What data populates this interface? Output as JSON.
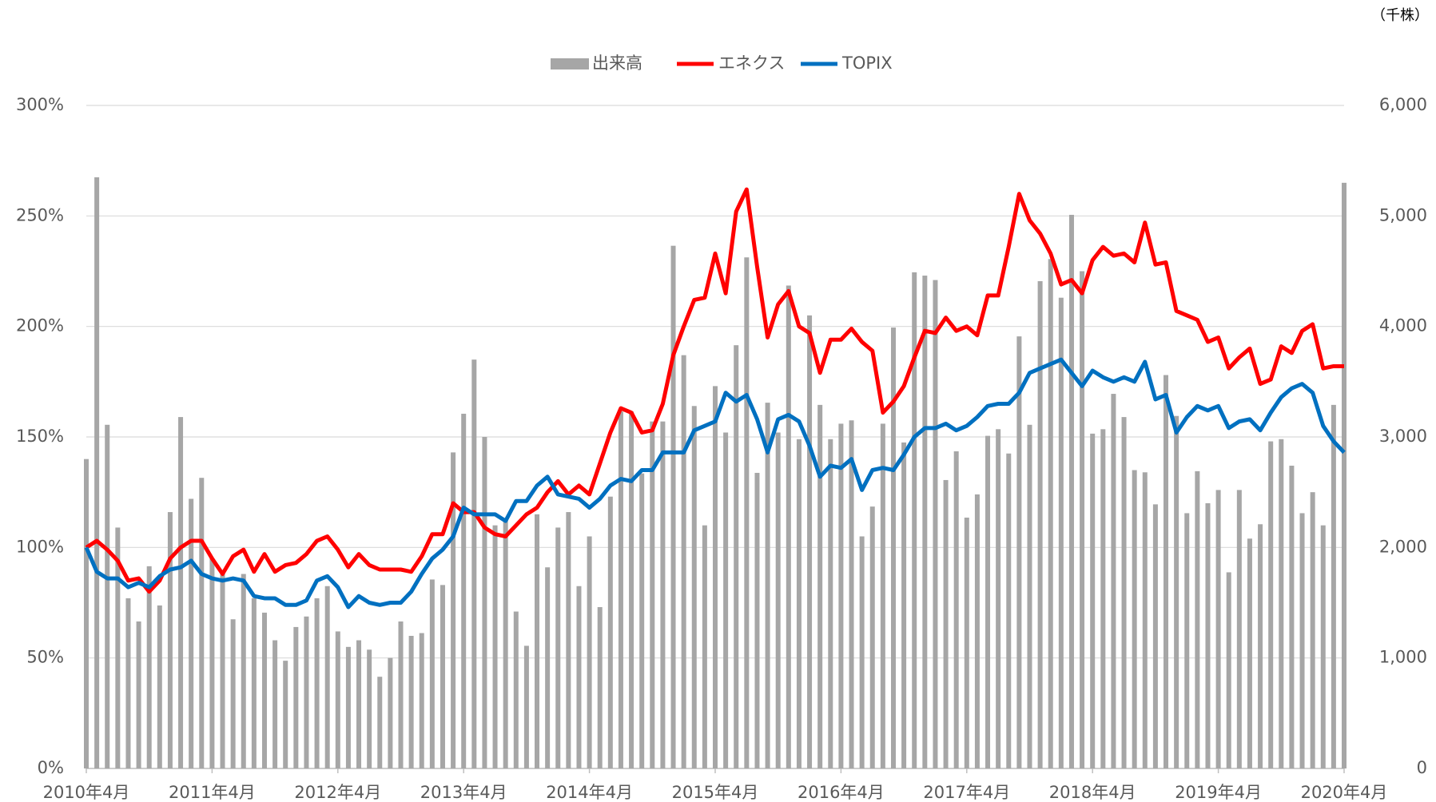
{
  "chart_data": {
    "type": "bar-line",
    "unit_label": "（千株）",
    "categories": [
      "2010年4月",
      null,
      null,
      null,
      null,
      null,
      null,
      null,
      null,
      null,
      null,
      null,
      "2011年4月",
      null,
      null,
      null,
      null,
      null,
      null,
      null,
      null,
      null,
      null,
      null,
      "2012年4月",
      null,
      null,
      null,
      null,
      null,
      null,
      null,
      null,
      null,
      null,
      null,
      "2013年4月",
      null,
      null,
      null,
      null,
      null,
      null,
      null,
      null,
      null,
      null,
      null,
      "2014年4月",
      null,
      null,
      null,
      null,
      null,
      null,
      null,
      null,
      null,
      null,
      null,
      "2015年4月",
      null,
      null,
      null,
      null,
      null,
      null,
      null,
      null,
      null,
      null,
      null,
      "2016年4月",
      null,
      null,
      null,
      null,
      null,
      null,
      null,
      null,
      null,
      null,
      null,
      "2017年4月",
      null,
      null,
      null,
      null,
      null,
      null,
      null,
      null,
      null,
      null,
      null,
      "2018年4月",
      null,
      null,
      null,
      null,
      null,
      null,
      null,
      null,
      null,
      null,
      null,
      "2019年4月",
      null,
      null,
      null,
      null,
      null,
      null,
      null,
      null,
      null,
      null,
      null,
      "2020年4月"
    ],
    "series": [
      {
        "name": "出来高",
        "type": "bar",
        "axis": "y2",
        "color": "#a6a6a6",
        "values": [
          2800,
          5350,
          3110,
          2180,
          1540,
          1330,
          1830,
          1475,
          2320,
          3180,
          2440,
          2630,
          1900,
          1790,
          1350,
          1760,
          1540,
          1410,
          1160,
          975,
          1280,
          1375,
          1540,
          1650,
          1240,
          1100,
          1160,
          1075,
          830,
          1000,
          1330,
          1200,
          1225,
          1710,
          1660,
          2860,
          3210,
          3700,
          3000,
          2200,
          2250,
          1420,
          1110,
          2300,
          1820,
          2180,
          2320,
          1650,
          2100,
          1460,
          2460,
          3230,
          3230,
          2670,
          3140,
          3140,
          4730,
          3740,
          3280,
          2200,
          3460,
          3040,
          3830,
          4625,
          2675,
          3310,
          3040,
          4370,
          2980,
          4100,
          3290,
          2980,
          3120,
          3150,
          2100,
          2370,
          3120,
          3990,
          2950,
          4490,
          4460,
          4420,
          2610,
          2870,
          2270,
          2480,
          3010,
          3070,
          2850,
          3910,
          3110,
          4410,
          4610,
          4260,
          5010,
          4500,
          3030,
          3070,
          3390,
          3180,
          2700,
          2680,
          2390,
          3560,
          3190,
          2310,
          2690,
          2400,
          2520,
          1775,
          2520,
          2080,
          2210,
          2960,
          2980,
          2740,
          2310,
          2500,
          2200,
          3290,
          5300
        ]
      },
      {
        "name": "エネクス",
        "type": "line",
        "color": "#ff0000",
        "values": [
          100,
          103,
          99,
          94,
          85,
          86,
          80,
          85,
          95,
          100,
          103,
          103,
          95,
          88,
          96,
          99,
          89,
          97,
          89,
          92,
          93,
          97,
          103,
          105,
          99,
          91,
          97,
          92,
          90,
          90,
          90,
          89,
          96,
          106,
          106,
          120,
          116,
          116,
          109,
          106,
          105,
          110,
          115,
          118,
          125,
          130,
          124,
          128,
          124,
          138,
          152,
          163,
          161,
          152,
          153,
          165,
          187,
          200,
          212,
          213,
          233,
          215,
          252,
          262,
          227,
          195,
          210,
          216,
          200,
          197,
          179,
          194,
          194,
          199,
          193,
          189,
          161,
          166,
          173,
          186,
          198,
          197,
          204,
          198,
          200,
          196,
          214,
          214,
          236,
          260,
          248,
          242,
          233,
          219,
          221,
          215,
          230,
          236,
          232,
          233,
          229,
          247,
          228,
          229,
          207,
          205,
          203,
          193,
          195,
          181,
          186,
          190,
          174,
          176,
          191,
          188,
          198,
          201,
          181,
          182,
          182
        ]
      },
      {
        "name": "TOPIX",
        "type": "line",
        "color": "#0070c0",
        "values": [
          100,
          89,
          86,
          86,
          82,
          84,
          82,
          87,
          90,
          91,
          94,
          88,
          86,
          85,
          86,
          85,
          78,
          77,
          77,
          74,
          74,
          76,
          85,
          87,
          82,
          73,
          78,
          75,
          74,
          75,
          75,
          80,
          88,
          95,
          99,
          105,
          118,
          115,
          115,
          115,
          112,
          121,
          121,
          128,
          132,
          124,
          123,
          122,
          118,
          122,
          128,
          131,
          130,
          135,
          135,
          143,
          143,
          143,
          153,
          155,
          157,
          170,
          166,
          169,
          158,
          143,
          158,
          160,
          157,
          146,
          132,
          137,
          136,
          140,
          126,
          135,
          136,
          135,
          142,
          150,
          154,
          154,
          156,
          153,
          155,
          159,
          164,
          165,
          165,
          170,
          179,
          181,
          183,
          185,
          179,
          173,
          180,
          177,
          175,
          177,
          175,
          184,
          167,
          169,
          152,
          159,
          164,
          162,
          164,
          154,
          157,
          158,
          153,
          161,
          168,
          172,
          174,
          170,
          155,
          148,
          143
        ]
      }
    ],
    "ylim": [
      0,
      300
    ],
    "yticks": [
      {
        "value": 0,
        "label": "0%"
      },
      {
        "value": 50,
        "label": "50%"
      },
      {
        "value": 100,
        "label": "100%"
      },
      {
        "value": 150,
        "label": "150%"
      },
      {
        "value": 200,
        "label": "200%"
      },
      {
        "value": 250,
        "label": "250%"
      },
      {
        "value": 300,
        "label": "300%"
      }
    ],
    "y2lim": [
      0,
      6000
    ],
    "y2ticks": [
      0,
      {
        "value": 1000,
        "label": "1,000"
      },
      {
        "value": 2000,
        "label": "2,000"
      },
      {
        "value": 3000,
        "label": "3,000"
      },
      {
        "value": 4000,
        "label": "4,000"
      },
      {
        "value": 5000,
        "label": "5,000"
      },
      {
        "value": 6000,
        "label": "6,000"
      }
    ],
    "grid": true,
    "legend": "top"
  }
}
